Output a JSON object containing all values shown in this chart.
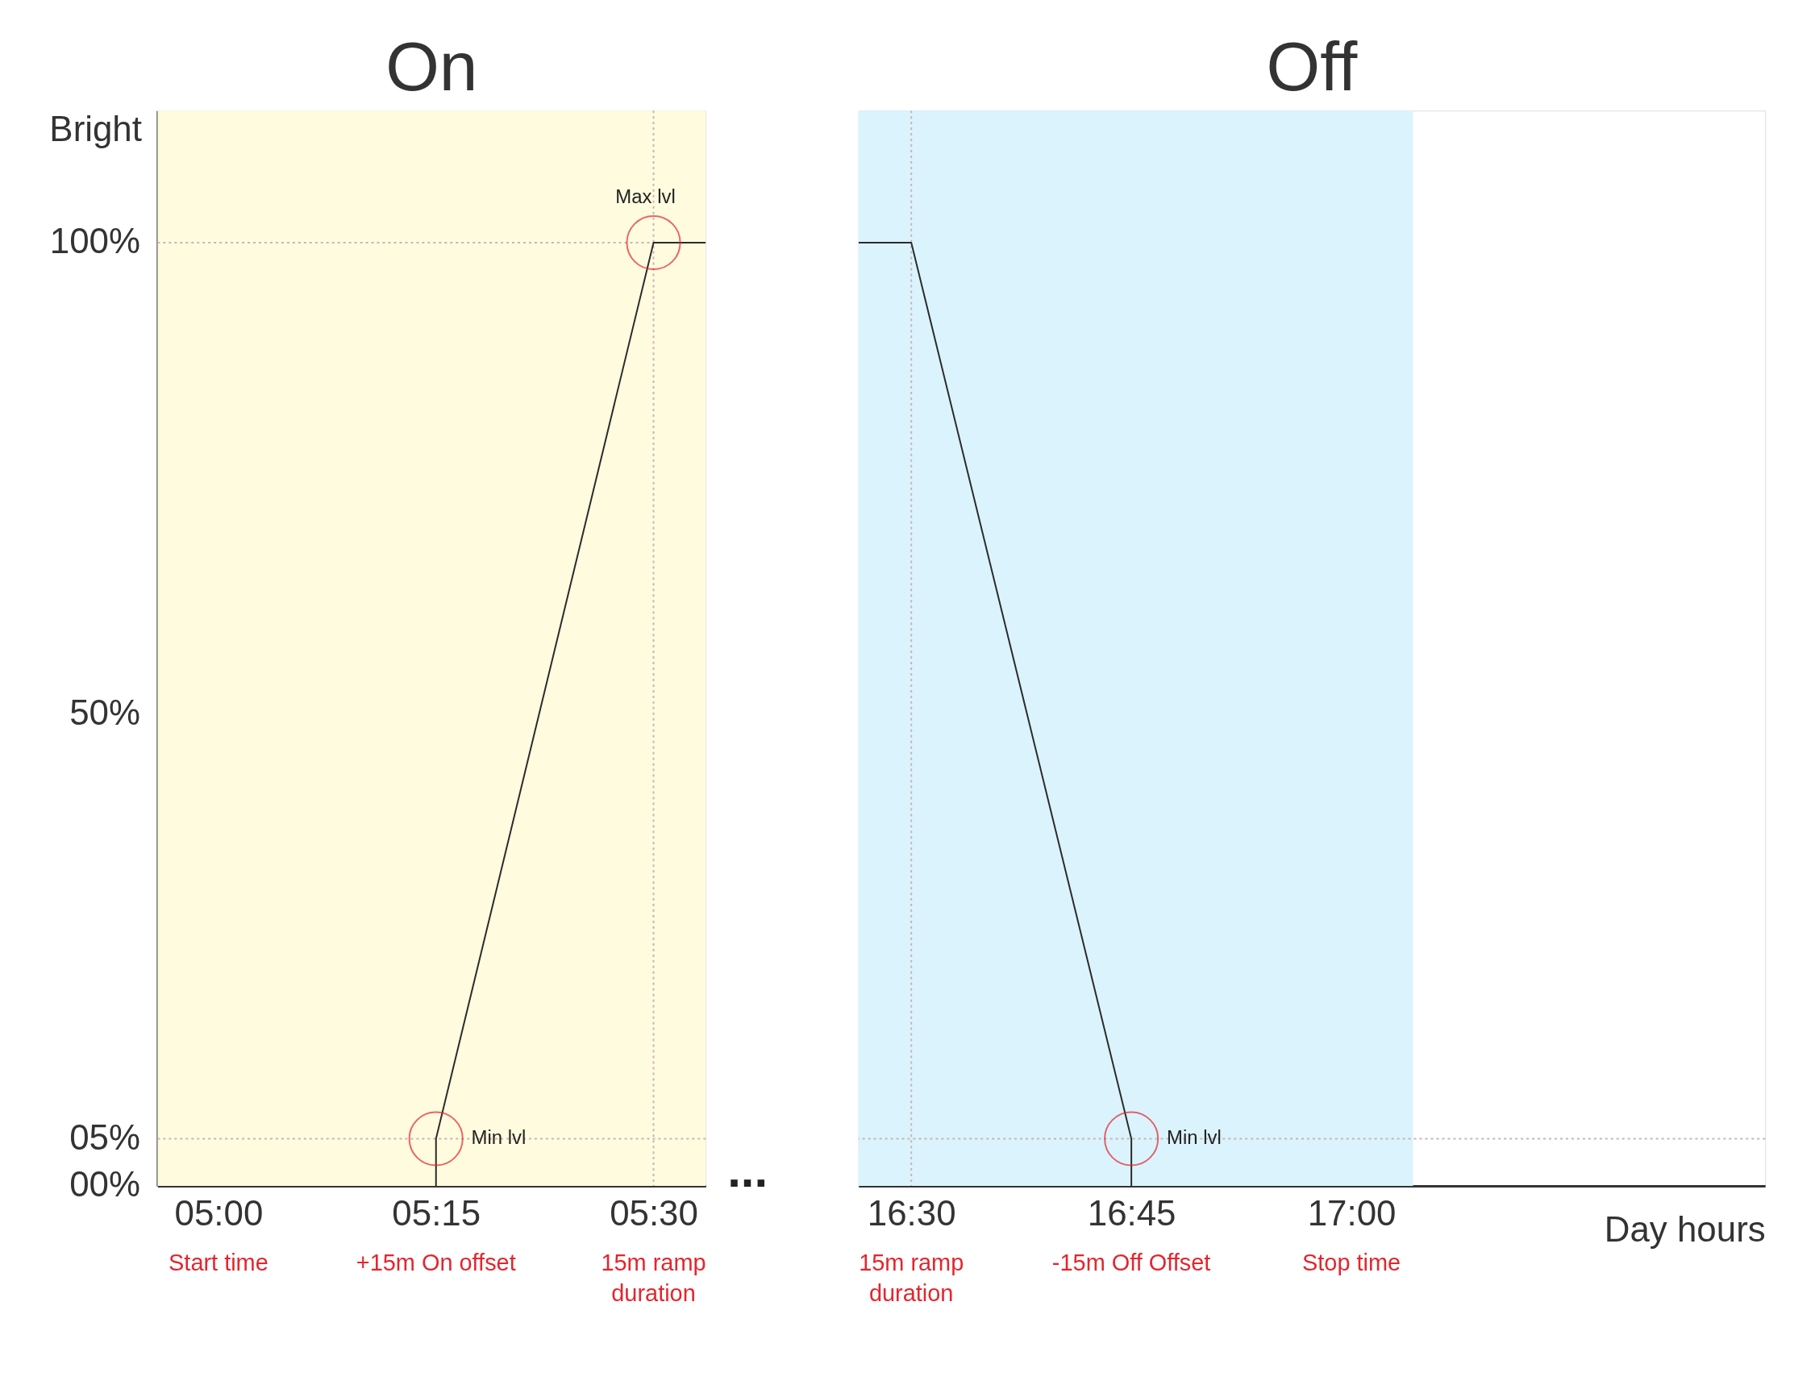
{
  "chart_data": [
    {
      "type": "line",
      "title": "On",
      "ylabel": "Bright",
      "xlim": [
        4.93,
        5.56
      ],
      "ylim": [
        0,
        114
      ],
      "xticks": [
        {
          "value": 5,
          "label": "05:00"
        },
        {
          "value": 5.25,
          "label": "05:15"
        },
        {
          "value": 5.5,
          "label": "05:30"
        }
      ],
      "yticks": [
        {
          "value": 0,
          "label": "00%"
        },
        {
          "value": 5,
          "label": "05%"
        },
        {
          "value": 50,
          "label": "50%"
        },
        {
          "value": 100,
          "label": "100%"
        }
      ],
      "series": [
        {
          "color": "#2b2b2b",
          "x": [
            5.25,
            5.25,
            5.5,
            5.56
          ],
          "values": [
            0,
            5,
            100,
            100
          ]
        }
      ],
      "ref_lines": [
        {
          "axis": "y",
          "value": 5,
          "color": "#c9b4b4",
          "line_style": "dotted"
        },
        {
          "axis": "y",
          "value": 100,
          "color": "#c9b4b4",
          "line_style": "dotted"
        },
        {
          "axis": "x",
          "value": 5.5,
          "color": "#c9b4b4",
          "line_style": "dotted"
        }
      ],
      "bands": [
        {
          "axis": "x",
          "from": 4.93,
          "to": 5.56,
          "color": "#fffbdf"
        }
      ],
      "annotations": [
        {
          "text": "Min lvl",
          "x": 5.25,
          "y": 5
        },
        {
          "text": "Max lvl",
          "x": 5.5,
          "y": 100
        },
        "Start time",
        "+15m On offset",
        "15m ramp\nduration",
        "..."
      ],
      "line_style": "solid",
      "marker": "none"
    },
    {
      "type": "line",
      "title": "Off",
      "xlabel": "Day hours",
      "xlim": [
        16.44,
        17.47
      ],
      "ylim": [
        0,
        114
      ],
      "tick_labels": "x",
      "xticks": [
        {
          "value": 16.5,
          "label": "16:30"
        },
        {
          "value": 16.75,
          "label": "16:45"
        },
        {
          "value": 17,
          "label": "17:00"
        }
      ],
      "series": [
        {
          "color": "#2b2b2b",
          "x": [
            16.44,
            16.5,
            16.75,
            16.75
          ],
          "values": [
            100,
            100,
            5,
            0
          ]
        }
      ],
      "ref_lines": [
        {
          "axis": "y",
          "value": 5,
          "color": "#c9b4b4",
          "line_style": "dotted"
        },
        {
          "axis": "x",
          "value": 16.5,
          "color": "#c9b4b4",
          "line_style": "dotted"
        }
      ],
      "bands": [
        {
          "axis": "x",
          "from": 16.44,
          "to": 17.07,
          "color": "#dbf3fc"
        }
      ],
      "annotations": [
        {
          "text": "Min lvl",
          "x": 16.75,
          "y": 5
        },
        "15m ramp\nduration",
        "-15m Off Offset",
        "Stop time"
      ],
      "line_style": "solid",
      "marker": "none"
    }
  ]
}
